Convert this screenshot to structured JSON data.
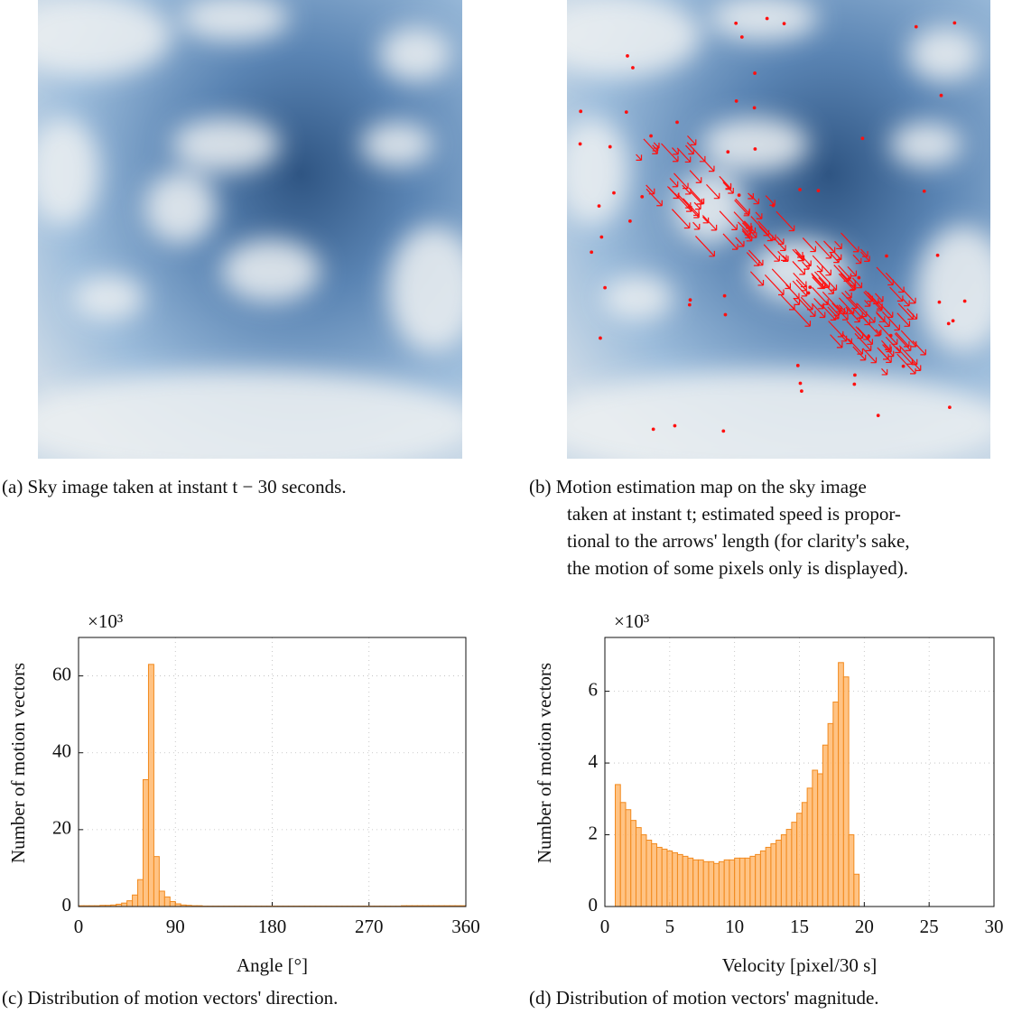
{
  "figures": [
    {
      "caption": [
        "(a) Sky image taken at instant t − 30 seconds."
      ]
    },
    {
      "caption": [
        "(b) Motion estimation map on the sky image",
        "taken at instant t; estimated speed is propor-",
        "tional to the arrows' length (for clarity's sake,",
        "the motion of some pixels only is displayed)."
      ]
    },
    {
      "caption": [
        "(c) Distribution of motion vectors' direction."
      ]
    },
    {
      "caption": [
        "(d) Distribution of motion vectors' magnitude."
      ]
    }
  ],
  "chart_data": [
    {
      "type": "histogram",
      "x_label": "Angle [°]",
      "y_label": "Number of motion vectors",
      "y_scale_label": "×10³",
      "color": "#ffb86e",
      "edge_color": "#f28a1e",
      "grid": true,
      "bins": [
        0,
        5,
        10,
        15,
        20,
        25,
        30,
        35,
        40,
        45,
        50,
        55,
        60,
        65,
        70,
        75,
        80,
        85,
        90,
        95,
        100,
        105,
        110,
        115,
        120,
        125,
        130,
        135,
        140,
        145,
        150,
        155,
        160,
        165,
        170,
        175,
        180,
        185,
        190,
        195,
        200,
        205,
        210,
        215,
        220,
        225,
        230,
        235,
        240,
        245,
        250,
        255,
        260,
        265,
        270,
        275,
        280,
        285,
        290,
        295,
        300,
        305,
        310,
        315,
        320,
        325,
        330,
        335,
        340,
        345,
        350,
        355,
        360
      ],
      "values": [
        0.2,
        0.2,
        0.2,
        0.2,
        0.3,
        0.3,
        0.4,
        0.6,
        0.9,
        1.5,
        3,
        7,
        33,
        63,
        13,
        4,
        2.5,
        1.3,
        0.7,
        0.4,
        0.3,
        0.2,
        0.2,
        0.1,
        0.1,
        0.1,
        0.1,
        0.1,
        0.1,
        0.1,
        0.1,
        0.1,
        0.1,
        0.1,
        0.1,
        0.1,
        0.1,
        0.1,
        0.1,
        0.1,
        0.1,
        0.1,
        0.1,
        0.1,
        0.1,
        0.1,
        0.1,
        0.1,
        0.1,
        0.1,
        0.1,
        0.1,
        0.1,
        0.1,
        0.1,
        0.1,
        0.1,
        0.1,
        0.1,
        0.1,
        0.2,
        0.2,
        0.2,
        0.2,
        0.2,
        0.2,
        0.2,
        0.2,
        0.2,
        0.2,
        0.2,
        0.2
      ],
      "xlim": [
        0,
        360
      ],
      "xticks": [
        0,
        90,
        180,
        270,
        360
      ],
      "ylim": [
        0,
        70
      ],
      "yticks": [
        0,
        20,
        40,
        60
      ]
    },
    {
      "type": "histogram",
      "x_label": "Velocity [pixel/30 s]",
      "y_label": "Number of motion vectors",
      "y_scale_label": "×10³",
      "color": "#ffb86e",
      "edge_color": "#f28a1e",
      "grid": true,
      "bins": [
        0.8,
        1.2,
        1.6,
        2,
        2.4,
        2.8,
        3.2,
        3.6,
        4,
        4.4,
        4.8,
        5.2,
        5.6,
        6,
        6.4,
        6.8,
        7.2,
        7.6,
        8,
        8.4,
        8.8,
        9.2,
        9.6,
        10,
        10.4,
        10.8,
        11.2,
        11.6,
        12,
        12.4,
        12.8,
        13.2,
        13.6,
        14,
        14.4,
        14.8,
        15.2,
        15.6,
        16,
        16.4,
        16.8,
        17.2,
        17.6,
        18,
        18.4,
        18.8,
        19.2,
        19.6
      ],
      "values": [
        3.4,
        2.9,
        2.7,
        2.4,
        2.2,
        2.0,
        1.85,
        1.75,
        1.65,
        1.6,
        1.55,
        1.5,
        1.45,
        1.4,
        1.35,
        1.3,
        1.3,
        1.25,
        1.25,
        1.2,
        1.25,
        1.3,
        1.3,
        1.35,
        1.35,
        1.35,
        1.4,
        1.45,
        1.55,
        1.65,
        1.75,
        1.85,
        2.0,
        2.15,
        2.35,
        2.6,
        2.9,
        3.3,
        3.8,
        3.7,
        4.5,
        5.1,
        5.7,
        6.8,
        6.4,
        2.0,
        0.9
      ],
      "xlim": [
        0,
        30
      ],
      "xticks": [
        0,
        5,
        10,
        15,
        20,
        25,
        30
      ],
      "ylim": [
        0,
        7.5
      ],
      "yticks": [
        0,
        2,
        4,
        6
      ]
    }
  ]
}
